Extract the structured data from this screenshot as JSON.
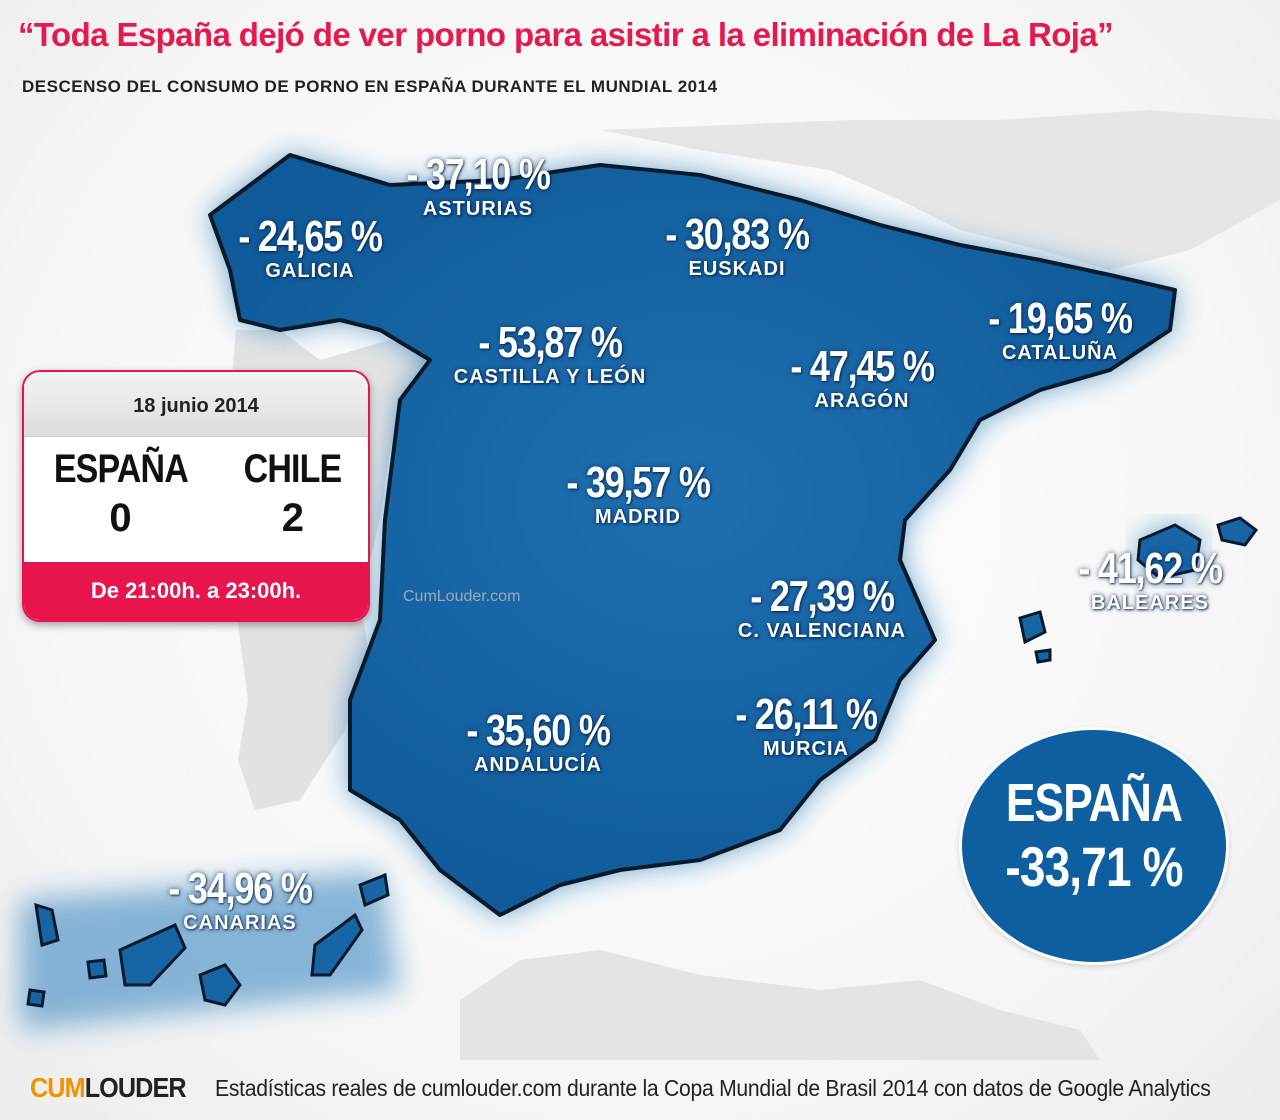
{
  "header": {
    "title": "“Toda España dejó de ver porno para asistir a la eliminación de La Roja”",
    "subtitle": "DESCENSO DEL CONSUMO DE PORNO EN ESPAÑA DURANTE EL MUNDIAL 2014"
  },
  "regions": {
    "galicia": {
      "value": "- 24,65 %",
      "name": "GALICIA"
    },
    "asturias": {
      "value": "- 37,10 %",
      "name": "ASTURIAS"
    },
    "euskadi": {
      "value": "- 30,83 %",
      "name": "EUSKADI"
    },
    "cataluna": {
      "value": "- 19,65 %",
      "name": "CATALUÑA"
    },
    "castilla": {
      "value": "- 53,87 %",
      "name": "CASTILLA Y LEÓN"
    },
    "aragon": {
      "value": "- 47,45 %",
      "name": "ARAGÓN"
    },
    "madrid": {
      "value": "- 39,57 %",
      "name": "MADRID"
    },
    "valenciana": {
      "value": "- 27,39 %",
      "name": "C. VALENCIANA"
    },
    "baleares": {
      "value": "- 41,62 %",
      "name": "BALEARES"
    },
    "andalucia": {
      "value": "- 35,60 %",
      "name": "ANDALUCÍA"
    },
    "murcia": {
      "value": "- 26,11 %",
      "name": "MURCIA"
    },
    "canarias": {
      "value": "- 34,96 %",
      "name": "CANARIAS"
    }
  },
  "match": {
    "date": "18 junio 2014",
    "team1": "ESPAÑA",
    "score1": "0",
    "team2": "CHILE",
    "score2": "2",
    "time": "De 21:00h. a 23:00h."
  },
  "watermark": "CumLouder.com",
  "total": {
    "label": "ESPAÑA",
    "value": "-33,71 %"
  },
  "footer": {
    "logo_part1": "CUM",
    "logo_part2": "LOUDER",
    "text": "Estadísticas reales de cumlouder.com durante la Copa Mundial de Brasil 2014 con datos de Google Analytics"
  },
  "colors": {
    "accent": "#e8154d",
    "map_blue": "#0d5fa0",
    "logo_orange": "#f39200"
  }
}
